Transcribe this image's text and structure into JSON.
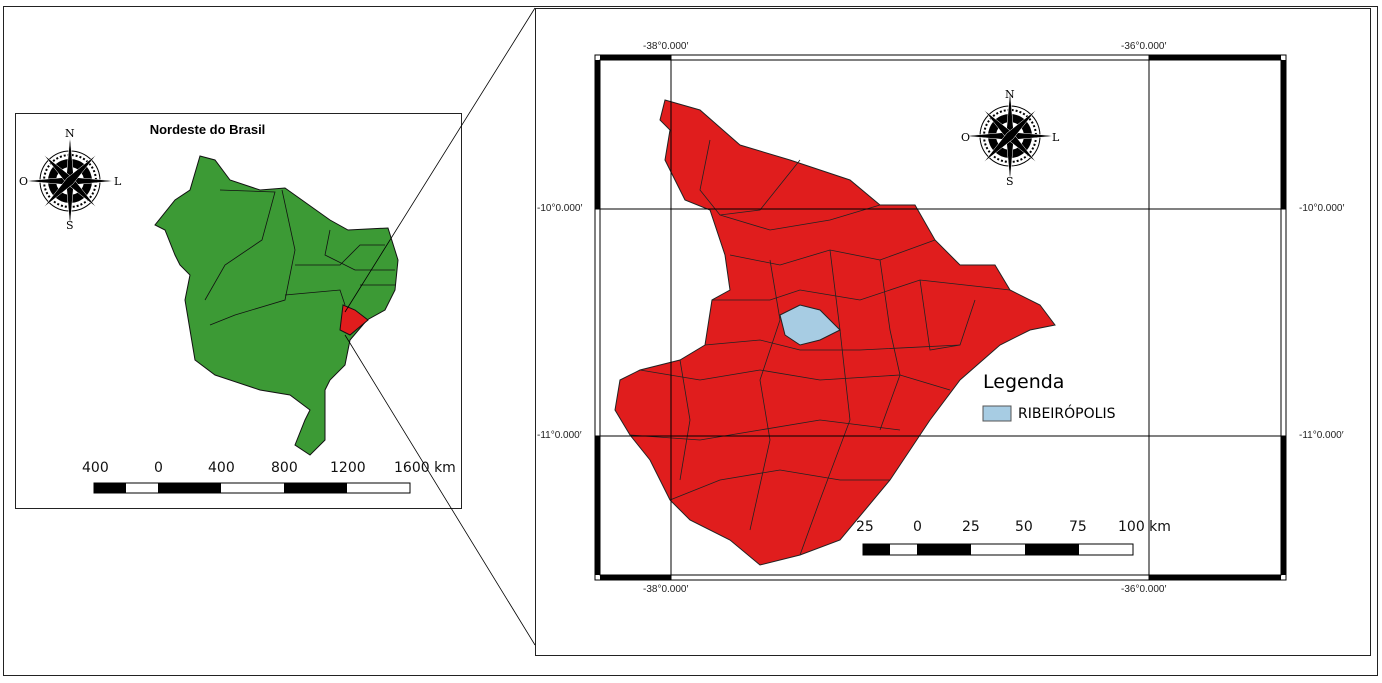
{
  "inset": {
    "title": "Nordeste do Brasil",
    "compass": {
      "n": "N",
      "s": "S",
      "w": "O",
      "e": "L"
    },
    "scale": {
      "labels": [
        "400",
        "0",
        "400",
        "800",
        "1200",
        "1600 km"
      ]
    },
    "colors": {
      "region": "#3c9a35",
      "highlight": "#e01d1d"
    }
  },
  "main": {
    "compass": {
      "n": "N",
      "s": "S",
      "w": "O",
      "e": "L"
    },
    "grid": {
      "top": [
        "-38°0.000′",
        "-36°0.000′"
      ],
      "bottom": [
        "-38°0.000′",
        "-36°0.000′"
      ],
      "left": [
        "-10°0.000′",
        "-11°0.000′"
      ],
      "right": [
        "-10°0.000′",
        "-11°0.000′"
      ]
    },
    "legend": {
      "title": "Legenda",
      "items": [
        {
          "label": "RIBEIRÓPOLIS",
          "color": "#a7cce3"
        }
      ]
    },
    "scale": {
      "labels": [
        "25",
        "0",
        "25",
        "50",
        "75",
        "100 km"
      ]
    },
    "colors": {
      "state": "#e01d1d",
      "highlight": "#a7cce3"
    }
  }
}
